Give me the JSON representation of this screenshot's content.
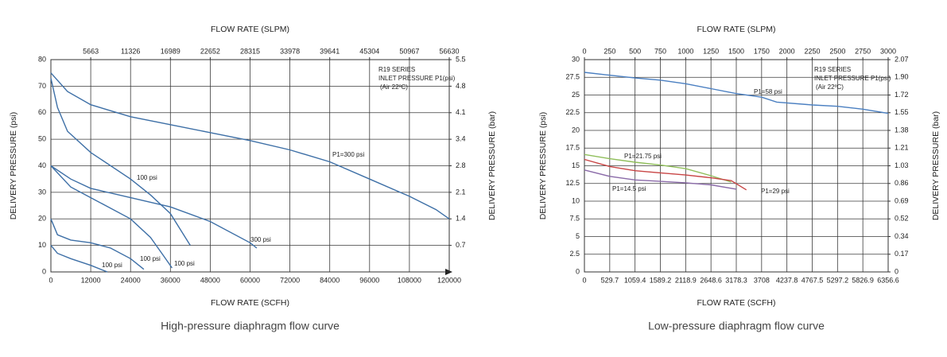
{
  "chart_data": [
    {
      "type": "line",
      "title": "High-pressure diaphragm flow curve",
      "xlabel": "FLOW RATE (SCFH)",
      "x2label": "FLOW RATE (SLPM)",
      "ylabel": "DELIVERY PRESSURE (psi)",
      "y2label": "DELIVERY PRESSURE (bar)",
      "annotation": [
        "R19 SERIES",
        "INLET PRESSURE P1(psi)",
        "(Air 22ºC)"
      ],
      "grid": true,
      "xlim": [
        0,
        120000
      ],
      "xticks": [
        0,
        12000,
        24000,
        36000,
        48000,
        60000,
        72000,
        84000,
        96000,
        108000,
        120000
      ],
      "x2lim": [
        0,
        56630
      ],
      "x2ticks": [
        5663,
        11326,
        16989,
        22652,
        28315,
        33978,
        39641,
        45304,
        50967,
        56630
      ],
      "ylim": [
        0,
        80
      ],
      "yticks": [
        0,
        10,
        20,
        30,
        40,
        50,
        60,
        70,
        80
      ],
      "y2lim": [
        0,
        5.5
      ],
      "y2ticks": [
        {
          "value": 0.6875,
          "label": "0.7"
        },
        {
          "value": 1.375,
          "label": "1.4"
        },
        {
          "value": 2.0625,
          "label": "2.1"
        },
        {
          "value": 2.75,
          "label": "2.8"
        },
        {
          "value": 3.4375,
          "label": "3.4"
        },
        {
          "value": 4.125,
          "label": "4.1"
        },
        {
          "value": 4.8125,
          "label": "4.8"
        },
        {
          "value": 5.5,
          "label": "5.5"
        }
      ],
      "series": [
        {
          "name": "P1=300 psi",
          "color": "#3d6fa6",
          "x": [
            0,
            5000,
            12000,
            24000,
            36000,
            48000,
            60000,
            72000,
            84000,
            96000,
            108000,
            116000,
            120000
          ],
          "values": [
            75,
            68,
            63,
            58.5,
            55.5,
            52.5,
            49.5,
            46,
            41.5,
            35,
            28.5,
            23.5,
            20
          ]
        },
        {
          "name": "100 psi",
          "color": "#3d6fa6",
          "x": [
            0,
            2000,
            5000,
            12000,
            24000,
            30000,
            36000,
            42000
          ],
          "values": [
            73,
            62,
            53,
            45,
            35,
            29,
            22,
            10
          ]
        },
        {
          "name": "300 psi",
          "color": "#3d6fa6",
          "x": [
            0,
            6000,
            12000,
            24000,
            36000,
            48000,
            60000,
            62000
          ],
          "values": [
            40,
            35,
            31.5,
            28,
            24.5,
            19,
            11,
            9
          ]
        },
        {
          "name": "100 psi",
          "color": "#3d6fa6",
          "x": [
            0,
            6000,
            12000,
            24000,
            30000,
            34000,
            36500
          ],
          "values": [
            40,
            32,
            28,
            20,
            13,
            6,
            1.5
          ]
        },
        {
          "name": "100 psi",
          "color": "#3d6fa6",
          "x": [
            0,
            2000,
            6000,
            12000,
            18000,
            24000,
            28000
          ],
          "values": [
            20,
            14,
            12,
            11,
            9,
            5,
            1
          ]
        },
        {
          "name": "100 psi",
          "color": "#3d6fa6",
          "x": [
            0,
            2000,
            6000,
            12000,
            17000
          ],
          "values": [
            10,
            7,
            5,
            2.5,
            0
          ]
        }
      ]
    },
    {
      "type": "line",
      "title": "Low-pressure diaphragm flow curve",
      "xlabel": "FLOW RATE (SCFH)",
      "x2label": "FLOW RATE (SLPM)",
      "ylabel": "DELIVERY PRESSURE (psi)",
      "y2label": "DELIVERY PRESSURE (bar)",
      "annotation": [
        "R19 SERIES",
        "INLET PRESSURE P1(psi)",
        "(Air 22ºC)"
      ],
      "grid": true,
      "xlim": [
        0,
        6356.6
      ],
      "xticks": [
        0,
        529.7,
        1059.4,
        1589.2,
        2118.9,
        2648.6,
        3178.3,
        3708,
        4237.8,
        4767.5,
        5297.2,
        5826.9,
        6356.6
      ],
      "x2lim": [
        0,
        3000
      ],
      "x2ticks": [
        0,
        250,
        500,
        750,
        1000,
        1250,
        1500,
        1750,
        2000,
        2250,
        2500,
        2750,
        3000
      ],
      "ylim": [
        0,
        30
      ],
      "yticks": [
        0,
        2.5,
        5,
        7.5,
        10,
        12.5,
        15,
        17.5,
        20,
        22.5,
        25,
        27.5,
        30
      ],
      "y2lim": [
        0,
        2.0684
      ],
      "y2ticks": [
        0,
        {
          "value": 0.1724,
          "label": "0.17"
        },
        {
          "value": 0.3447,
          "label": "0.34"
        },
        {
          "value": 0.5171,
          "label": "0.52"
        },
        {
          "value": 0.6895,
          "label": "0.69"
        },
        {
          "value": 0.8618,
          "label": "0.86"
        },
        {
          "value": 1.0342,
          "label": "1.03"
        },
        {
          "value": 1.2066,
          "label": "1.21"
        },
        {
          "value": 1.379,
          "label": "1.38"
        },
        {
          "value": 1.5513,
          "label": "1.55"
        },
        {
          "value": 1.7237,
          "label": "1.72"
        },
        {
          "value": 1.8961,
          "label": "1.90"
        },
        {
          "value": 2.0684,
          "label": "2.07"
        }
      ],
      "series": [
        {
          "name": "P1=58 psi",
          "color": "#4a7fc1",
          "x": [
            0,
            529.7,
            1059.4,
            1589.2,
            2118.9,
            2648.6,
            3178.3,
            3708,
            4025.9,
            4767.5,
            5297.2,
            5826.9,
            6356.6
          ],
          "values": [
            28.2,
            27.8,
            27.4,
            27.1,
            26.6,
            25.9,
            25.2,
            24.7,
            24,
            23.6,
            23.4,
            23,
            22.4
          ]
        },
        {
          "name": "P1=21.75 psi",
          "color": "#8fbe5a",
          "x": [
            0,
            529.7,
            1059.4,
            1589.2,
            2118.9,
            2648.6,
            3072.4
          ],
          "values": [
            16.6,
            16,
            15.5,
            15.1,
            14.6,
            13.6,
            12.7
          ]
        },
        {
          "name": "P1=29 psi",
          "color": "#c84545",
          "x": [
            0,
            529.7,
            1059.4,
            1589.2,
            2118.9,
            2648.6,
            3072.4,
            3390.2
          ],
          "values": [
            15.9,
            14.9,
            14.3,
            14,
            13.7,
            13.3,
            12.9,
            11.6
          ]
        },
        {
          "name": "P1=14.5 psi",
          "color": "#8a6aa8",
          "x": [
            0,
            529.7,
            1059.4,
            1589.2,
            2118.9,
            2648.6,
            3178.3
          ],
          "values": [
            14.4,
            13.5,
            13,
            12.8,
            12.6,
            12.3,
            11.7
          ]
        }
      ]
    }
  ]
}
